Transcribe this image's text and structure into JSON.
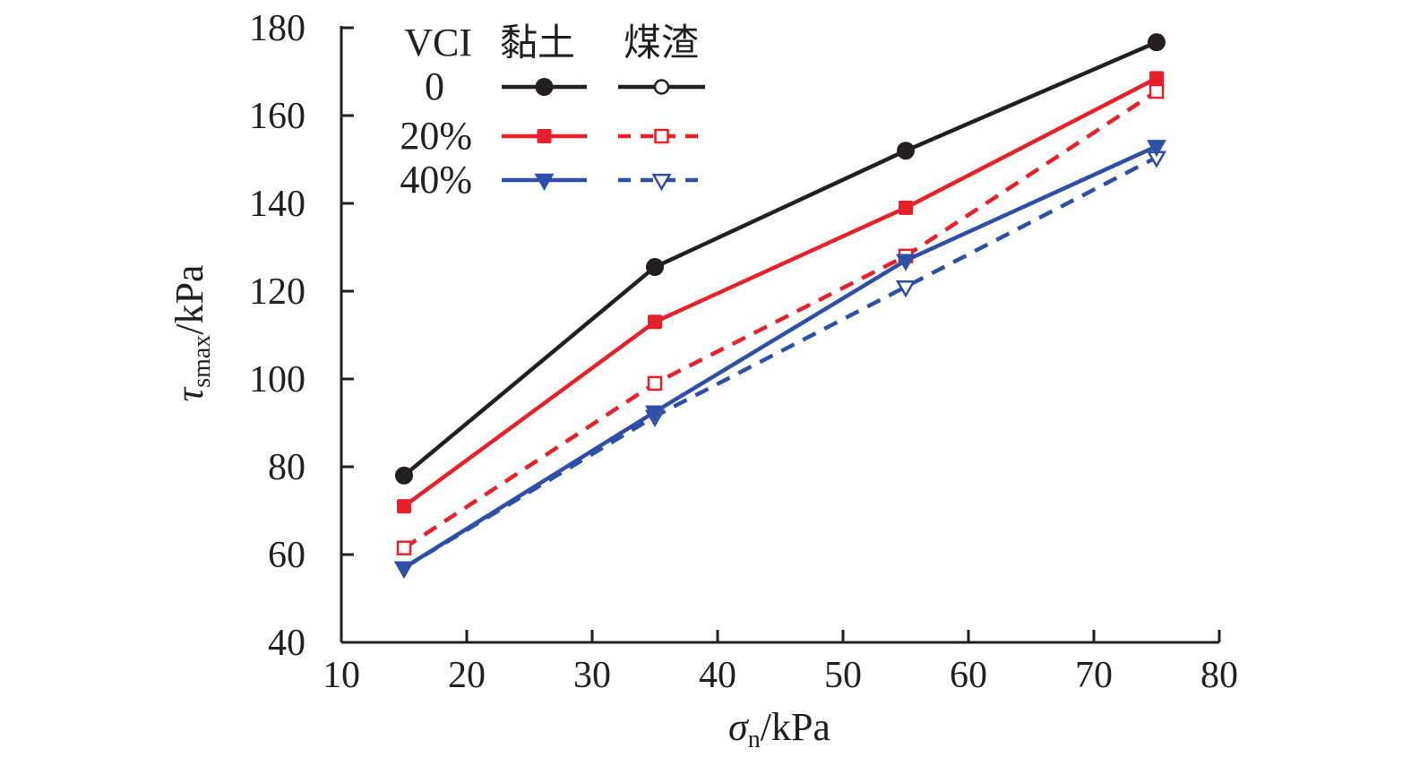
{
  "chart_data": {
    "type": "line",
    "title": "",
    "xlabel": {
      "symbol": "σ",
      "sub": "n",
      "unit": "/kPa"
    },
    "ylabel": {
      "symbol": "τ",
      "sub": "smax",
      "unit": "/kPa"
    },
    "xlim": [
      10,
      80
    ],
    "ylim": [
      40,
      180
    ],
    "xticks": [
      10,
      20,
      30,
      40,
      50,
      60,
      70,
      80
    ],
    "yticks": [
      40,
      60,
      80,
      100,
      120,
      140,
      160,
      180
    ],
    "grid": false,
    "legend_position": "top-left",
    "legend": {
      "header": [
        "VCI",
        "黏土",
        "煤渣"
      ],
      "rows": [
        "0",
        "20%",
        "40%"
      ]
    },
    "x": [
      15,
      35,
      55,
      75
    ],
    "series": [
      {
        "name": "VCI 0 黏土",
        "vci": "0",
        "material": "黏土",
        "color": "#231f20",
        "marker": "circle",
        "filled": true,
        "dashed": false,
        "values": [
          78,
          125.5,
          152,
          176.7
        ]
      },
      {
        "name": "VCI 0 煤渣",
        "vci": "0",
        "material": "煤渣",
        "color": "#231f20",
        "marker": "circle",
        "filled": false,
        "dashed": false,
        "values": [
          null,
          null,
          null,
          null
        ]
      },
      {
        "name": "VCI 20% 黏土",
        "vci": "20%",
        "material": "黏土",
        "color": "#e8202a",
        "marker": "square",
        "filled": true,
        "dashed": false,
        "values": [
          71,
          113,
          139,
          168.5
        ]
      },
      {
        "name": "VCI 20% 煤渣",
        "vci": "20%",
        "material": "煤渣",
        "color": "#e8202a",
        "marker": "square",
        "filled": false,
        "dashed": true,
        "values": [
          61.5,
          99,
          128,
          165.5
        ]
      },
      {
        "name": "VCI 40% 黏土",
        "vci": "40%",
        "material": "黏土",
        "color": "#2f4fa6",
        "marker": "triangle-down",
        "filled": true,
        "dashed": false,
        "values": [
          57,
          92.5,
          127,
          153
        ]
      },
      {
        "name": "VCI 40% 煤渣",
        "vci": "40%",
        "material": "煤渣",
        "color": "#2f4fa6",
        "marker": "triangle-down",
        "filled": false,
        "dashed": true,
        "values": [
          57,
          91.5,
          121,
          150.5
        ]
      }
    ]
  }
}
